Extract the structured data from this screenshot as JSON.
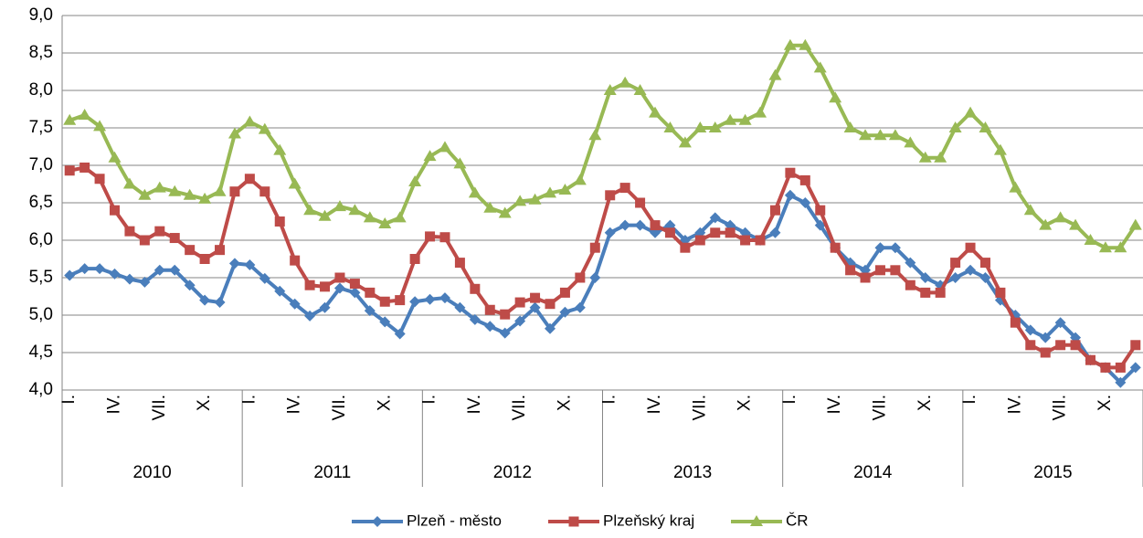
{
  "chart_data": {
    "type": "line",
    "categories": [
      "I.",
      null,
      null,
      "IV.",
      null,
      null,
      "VII.",
      null,
      null,
      "X.",
      null,
      null,
      "I.",
      null,
      null,
      "IV.",
      null,
      null,
      "VII.",
      null,
      null,
      "X.",
      null,
      null,
      "I.",
      null,
      null,
      "IV.",
      null,
      null,
      "VII.",
      null,
      null,
      "X.",
      null,
      null,
      "I.",
      null,
      null,
      "IV.",
      null,
      null,
      "VII.",
      null,
      null,
      "X.",
      null,
      null,
      "I.",
      null,
      null,
      "IV.",
      null,
      null,
      "VII.",
      null,
      null,
      "X.",
      null,
      null,
      "I.",
      null,
      null,
      "IV.",
      null,
      null,
      "VII.",
      null,
      null,
      "X.",
      null,
      null
    ],
    "groups": [
      "2010",
      "2011",
      "2012",
      "2013",
      "2014",
      "2015"
    ],
    "series": [
      {
        "name": "Plzeň - město",
        "color": "#4a7ebb",
        "marker": "diamond",
        "values": [
          5.53,
          5.62,
          5.62,
          5.55,
          5.48,
          5.44,
          5.6,
          5.6,
          5.4,
          5.2,
          5.17,
          5.69,
          5.67,
          5.49,
          5.32,
          5.15,
          4.99,
          5.1,
          5.36,
          5.3,
          5.06,
          4.91,
          4.75,
          5.18,
          5.21,
          5.23,
          5.1,
          4.94,
          4.85,
          4.76,
          4.92,
          5.1,
          4.82,
          5.04,
          5.1,
          5.5,
          6.1,
          6.2,
          6.2,
          6.1,
          6.2,
          6.0,
          6.1,
          6.3,
          6.2,
          6.1,
          6.0,
          6.1,
          6.6,
          6.5,
          6.2,
          5.9,
          5.7,
          5.6,
          5.9,
          5.9,
          5.7,
          5.5,
          5.4,
          5.5,
          5.6,
          5.5,
          5.2,
          5.0,
          4.8,
          4.7,
          4.9,
          4.7,
          4.4,
          4.3,
          4.1,
          4.3
        ]
      },
      {
        "name": "Plzeňský kraj",
        "color": "#be4b48",
        "marker": "square",
        "values": [
          6.93,
          6.97,
          6.82,
          6.4,
          6.12,
          6.0,
          6.12,
          6.03,
          5.87,
          5.75,
          5.87,
          6.65,
          6.82,
          6.65,
          6.25,
          5.73,
          5.4,
          5.38,
          5.5,
          5.42,
          5.3,
          5.18,
          5.2,
          5.75,
          6.05,
          6.04,
          5.7,
          5.35,
          5.07,
          5.01,
          5.17,
          5.23,
          5.15,
          5.3,
          5.5,
          5.9,
          6.6,
          6.7,
          6.5,
          6.2,
          6.1,
          5.9,
          6.0,
          6.1,
          6.1,
          6.0,
          6.0,
          6.4,
          6.9,
          6.8,
          6.4,
          5.9,
          5.6,
          5.5,
          5.6,
          5.6,
          5.4,
          5.3,
          5.3,
          5.7,
          5.9,
          5.7,
          5.3,
          4.9,
          4.6,
          4.5,
          4.6,
          4.6,
          4.4,
          4.3,
          4.3,
          4.6
        ]
      },
      {
        "name": "ČR",
        "color": "#98b954",
        "marker": "triangle",
        "values": [
          7.6,
          7.67,
          7.52,
          7.1,
          6.75,
          6.6,
          6.7,
          6.65,
          6.6,
          6.55,
          6.65,
          7.42,
          7.58,
          7.48,
          7.2,
          6.75,
          6.4,
          6.32,
          6.45,
          6.4,
          6.3,
          6.22,
          6.3,
          6.78,
          7.12,
          7.24,
          7.02,
          6.63,
          6.43,
          6.36,
          6.52,
          6.54,
          6.63,
          6.67,
          6.8,
          7.4,
          8.0,
          8.1,
          8.0,
          7.7,
          7.5,
          7.3,
          7.5,
          7.5,
          7.6,
          7.6,
          7.7,
          8.2,
          8.6,
          8.6,
          8.3,
          7.9,
          7.5,
          7.4,
          7.4,
          7.4,
          7.3,
          7.1,
          7.1,
          7.5,
          7.7,
          7.5,
          7.2,
          6.7,
          6.4,
          6.2,
          6.3,
          6.2,
          6.0,
          5.9,
          5.9,
          6.2
        ]
      }
    ],
    "ylim": [
      4,
      9
    ],
    "yticks": [
      {
        "value": 4,
        "label": "4,0"
      },
      {
        "value": 4.5,
        "label": "4,5"
      },
      {
        "value": 5,
        "label": "5,0"
      },
      {
        "value": 5.5,
        "label": "5,5"
      },
      {
        "value": 6,
        "label": "6,0"
      },
      {
        "value": 6.5,
        "label": "6,5"
      },
      {
        "value": 7,
        "label": "7,0"
      },
      {
        "value": 7.5,
        "label": "7,5"
      },
      {
        "value": 8,
        "label": "8,0"
      },
      {
        "value": 8.5,
        "label": "8,5"
      },
      {
        "value": 9,
        "label": "9,0"
      }
    ],
    "grid": true,
    "legend": "bottom"
  }
}
